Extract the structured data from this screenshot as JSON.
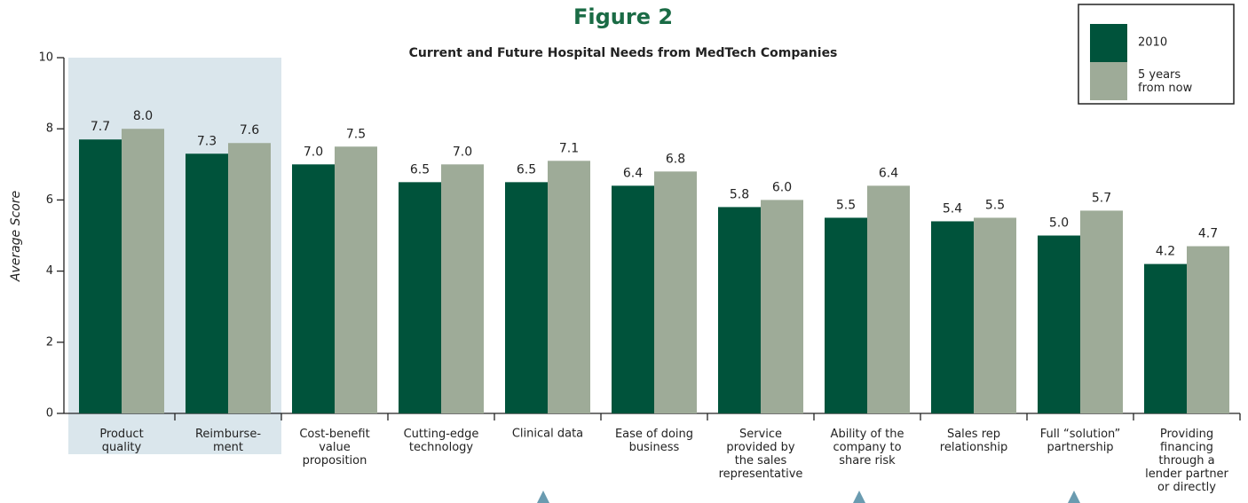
{
  "chart_data": {
    "type": "bar",
    "title": "Figure 2",
    "subtitle": "Current and Future Hospital Needs from MedTech Companies",
    "y_label": "Average Score",
    "categories": [
      "Product\nquality",
      "Reimburse-\nment",
      "Cost-benefit\nvalue\nproposition",
      "Cutting-edge\ntechnology",
      "Clinical data",
      "Ease of doing\nbusiness",
      "Service\nprovided by\nthe sales\nrepresentative",
      "Ability of the\ncompany to\nshare risk",
      "Sales rep\nrelationship",
      "Full “solution”\npartnership",
      "Providing\nfinancing\nthrough a\nlender partner\nor directly"
    ],
    "series": [
      {
        "name": "2010",
        "color": "#00533b",
        "values": [
          7.7,
          7.3,
          7.0,
          6.5,
          6.5,
          6.4,
          5.8,
          5.5,
          5.4,
          5.0,
          4.2
        ],
        "value_labels": [
          "7.7",
          "7.3",
          "7.0",
          "6.5",
          "6.5",
          "6.4",
          "5.8",
          "5.5",
          "5.4",
          "5.0",
          "4.2"
        ]
      },
      {
        "name": "5 years\nfrom now",
        "color": "#9eab98",
        "values": [
          8.0,
          7.6,
          7.5,
          7.0,
          7.1,
          6.8,
          6.0,
          6.4,
          5.5,
          5.7,
          4.7
        ],
        "value_labels": [
          "8.0",
          "7.6",
          "7.5",
          "7.0",
          "7.1",
          "6.8",
          "6.0",
          "6.4",
          "5.5",
          "5.7",
          "4.7"
        ]
      }
    ],
    "ylim": [
      0,
      10
    ],
    "yticks": [
      0,
      2,
      4,
      6,
      8,
      10
    ],
    "highlight_color": "#dae6ec"
  }
}
